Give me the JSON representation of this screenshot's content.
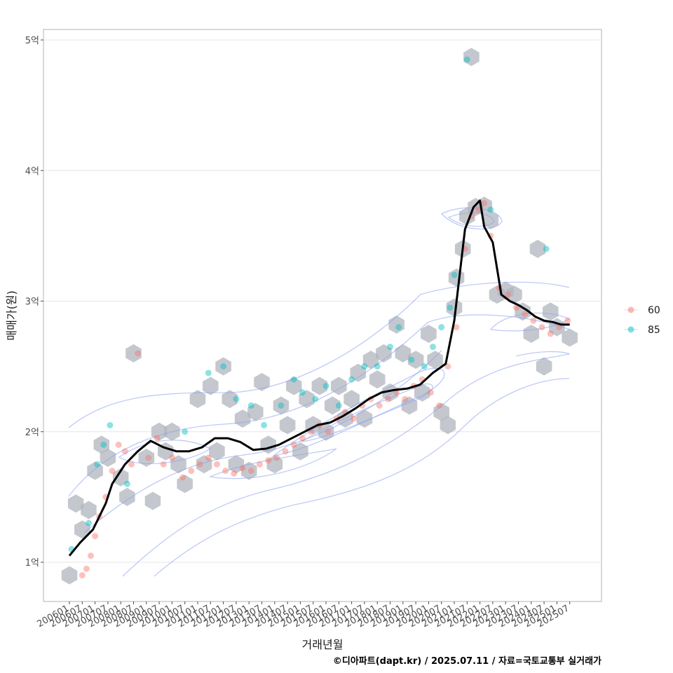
{
  "chart_data": {
    "type": "scatter",
    "xlabel": "거래년월",
    "ylabel": "매매가(원)",
    "caption": "©디아파트(dapt.kr) / 2025.07.11 / 자료=국토교통부 실거래가",
    "x_ticks": [
      "200601",
      "200607",
      "200701",
      "200707",
      "200801",
      "200807",
      "200901",
      "200907",
      "201001",
      "201007",
      "201101",
      "201107",
      "201201",
      "201207",
      "201301",
      "201307",
      "201401",
      "201407",
      "201501",
      "201507",
      "201601",
      "201607",
      "201701",
      "201707",
      "201801",
      "201807",
      "201901",
      "201907",
      "202001",
      "202007",
      "202101",
      "202107",
      "202201",
      "202207",
      "202301",
      "202307",
      "202401",
      "202407",
      "202501",
      "202507"
    ],
    "y_ticks": [
      {
        "value": 1,
        "label": "1억"
      },
      {
        "value": 2,
        "label": "2억"
      },
      {
        "value": 3,
        "label": "3억"
      },
      {
        "value": 4,
        "label": "4억"
      },
      {
        "value": 5,
        "label": "5억"
      }
    ],
    "ylim": [
      0.7,
      5.08
    ],
    "grid": true,
    "legend_position": "right",
    "series": [
      {
        "name": "60",
        "color": "#F8766D",
        "points": [
          [
            "2006-07",
            0.9
          ],
          [
            "2006-09",
            0.95
          ],
          [
            "2006-11",
            1.05
          ],
          [
            "2007-01",
            1.2
          ],
          [
            "2007-03",
            1.35
          ],
          [
            "2007-06",
            1.5
          ],
          [
            "2007-09",
            1.7
          ],
          [
            "2007-12",
            1.9
          ],
          [
            "2008-03",
            1.85
          ],
          [
            "2008-06",
            1.75
          ],
          [
            "2008-09",
            2.6
          ],
          [
            "2009-02",
            1.8
          ],
          [
            "2009-06",
            1.95
          ],
          [
            "2009-09",
            1.75
          ],
          [
            "2010-01",
            1.8
          ],
          [
            "2010-06",
            1.65
          ],
          [
            "2010-10",
            1.7
          ],
          [
            "2011-02",
            1.75
          ],
          [
            "2011-06",
            1.8
          ],
          [
            "2011-10",
            1.75
          ],
          [
            "2012-02",
            1.7
          ],
          [
            "2012-06",
            1.68
          ],
          [
            "2012-10",
            1.72
          ],
          [
            "2013-02",
            1.7
          ],
          [
            "2013-06",
            1.75
          ],
          [
            "2013-10",
            1.78
          ],
          [
            "2014-02",
            1.8
          ],
          [
            "2014-06",
            1.85
          ],
          [
            "2014-10",
            1.9
          ],
          [
            "2015-02",
            1.95
          ],
          [
            "2015-06",
            2.0
          ],
          [
            "2015-10",
            2.05
          ],
          [
            "2016-02",
            2.0
          ],
          [
            "2016-06",
            2.1
          ],
          [
            "2016-10",
            2.15
          ],
          [
            "2017-02",
            2.1
          ],
          [
            "2017-06",
            2.2
          ],
          [
            "2017-10",
            2.25
          ],
          [
            "2018-02",
            2.2
          ],
          [
            "2018-06",
            2.25
          ],
          [
            "2018-10",
            2.3
          ],
          [
            "2019-02",
            2.25
          ],
          [
            "2019-06",
            2.35
          ],
          [
            "2019-10",
            2.4
          ],
          [
            "2020-02",
            2.3
          ],
          [
            "2020-06",
            2.2
          ],
          [
            "2020-10",
            2.5
          ],
          [
            "2021-02",
            2.8
          ],
          [
            "2021-06",
            3.4
          ],
          [
            "2021-09",
            3.65
          ],
          [
            "2021-12",
            3.7
          ],
          [
            "2022-03",
            3.75
          ],
          [
            "2022-06",
            3.5
          ],
          [
            "2022-10",
            3.1
          ],
          [
            "2023-02",
            3.05
          ],
          [
            "2023-06",
            2.95
          ],
          [
            "2023-10",
            2.9
          ],
          [
            "2024-02",
            2.85
          ],
          [
            "2024-06",
            2.8
          ],
          [
            "2024-10",
            2.75
          ],
          [
            "2025-02",
            2.8
          ],
          [
            "2025-06",
            2.85
          ]
        ]
      },
      {
        "name": "85",
        "color": "#00BFC4",
        "points": [
          [
            "2006-02",
            1.1
          ],
          [
            "2006-10",
            1.3
          ],
          [
            "2007-02",
            1.75
          ],
          [
            "2007-05",
            1.9
          ],
          [
            "2007-08",
            2.05
          ],
          [
            "2008-04",
            1.6
          ],
          [
            "2010-07",
            2.0
          ],
          [
            "2011-06",
            2.45
          ],
          [
            "2012-01",
            2.5
          ],
          [
            "2012-07",
            2.25
          ],
          [
            "2013-02",
            2.2
          ],
          [
            "2013-08",
            2.05
          ],
          [
            "2014-04",
            2.2
          ],
          [
            "2014-10",
            2.4
          ],
          [
            "2015-02",
            2.3
          ],
          [
            "2015-08",
            2.25
          ],
          [
            "2016-01",
            2.35
          ],
          [
            "2016-07",
            2.2
          ],
          [
            "2017-01",
            2.4
          ],
          [
            "2017-07",
            2.5
          ],
          [
            "2018-01",
            2.5
          ],
          [
            "2018-07",
            2.65
          ],
          [
            "2018-11",
            2.8
          ],
          [
            "2019-05",
            2.55
          ],
          [
            "2019-11",
            2.5
          ],
          [
            "2020-03",
            2.65
          ],
          [
            "2020-07",
            2.8
          ],
          [
            "2020-11",
            2.95
          ],
          [
            "2021-01",
            3.2
          ],
          [
            "2021-07",
            4.85
          ],
          [
            "2022-06",
            3.7
          ],
          [
            "2024-08",
            3.4
          ]
        ]
      }
    ],
    "median_line": [
      [
        "2006-01",
        1.05
      ],
      [
        "2006-06",
        1.15
      ],
      [
        "2006-12",
        1.25
      ],
      [
        "2007-06",
        1.45
      ],
      [
        "2007-09",
        1.6
      ],
      [
        "2008-03",
        1.75
      ],
      [
        "2008-09",
        1.85
      ],
      [
        "2009-03",
        1.93
      ],
      [
        "2009-09",
        1.88
      ],
      [
        "2010-03",
        1.85
      ],
      [
        "2010-09",
        1.85
      ],
      [
        "2011-03",
        1.88
      ],
      [
        "2011-09",
        1.95
      ],
      [
        "2012-03",
        1.95
      ],
      [
        "2012-09",
        1.92
      ],
      [
        "2013-03",
        1.86
      ],
      [
        "2013-09",
        1.87
      ],
      [
        "2014-03",
        1.9
      ],
      [
        "2014-09",
        1.95
      ],
      [
        "2015-03",
        2.0
      ],
      [
        "2015-09",
        2.05
      ],
      [
        "2016-03",
        2.07
      ],
      [
        "2016-09",
        2.12
      ],
      [
        "2017-03",
        2.18
      ],
      [
        "2017-09",
        2.25
      ],
      [
        "2018-03",
        2.3
      ],
      [
        "2018-09",
        2.32
      ],
      [
        "2019-03",
        2.33
      ],
      [
        "2019-09",
        2.36
      ],
      [
        "2020-03",
        2.45
      ],
      [
        "2020-09",
        2.52
      ],
      [
        "2021-01",
        2.85
      ],
      [
        "2021-06",
        3.55
      ],
      [
        "2021-10",
        3.72
      ],
      [
        "2022-01",
        3.77
      ],
      [
        "2022-03",
        3.57
      ],
      [
        "2022-07",
        3.45
      ],
      [
        "2022-11",
        3.05
      ],
      [
        "2023-03",
        3.0
      ],
      [
        "2023-07",
        2.97
      ],
      [
        "2023-11",
        2.93
      ],
      [
        "2024-03",
        2.88
      ],
      [
        "2024-07",
        2.85
      ],
      [
        "2024-11",
        2.84
      ],
      [
        "2025-03",
        2.82
      ],
      [
        "2025-07",
        2.82
      ]
    ],
    "hexbins": [
      [
        "2006-01",
        0.9
      ],
      [
        "2006-04",
        1.45
      ],
      [
        "2006-07",
        1.25
      ],
      [
        "2006-10",
        1.4
      ],
      [
        "2007-01",
        1.7
      ],
      [
        "2007-04",
        1.9
      ],
      [
        "2007-07",
        1.8
      ],
      [
        "2008-01",
        1.65
      ],
      [
        "2008-04",
        1.5
      ],
      [
        "2008-07",
        2.6
      ],
      [
        "2009-01",
        1.8
      ],
      [
        "2009-04",
        1.47
      ],
      [
        "2009-07",
        2.0
      ],
      [
        "2009-10",
        1.85
      ],
      [
        "2010-01",
        2.0
      ],
      [
        "2010-04",
        1.75
      ],
      [
        "2010-07",
        1.6
      ],
      [
        "2011-01",
        2.25
      ],
      [
        "2011-04",
        1.75
      ],
      [
        "2011-07",
        2.35
      ],
      [
        "2011-10",
        1.85
      ],
      [
        "2012-01",
        2.5
      ],
      [
        "2012-04",
        2.25
      ],
      [
        "2012-07",
        1.75
      ],
      [
        "2012-10",
        2.1
      ],
      [
        "2013-01",
        1.7
      ],
      [
        "2013-04",
        2.15
      ],
      [
        "2013-07",
        2.38
      ],
      [
        "2013-10",
        1.9
      ],
      [
        "2014-01",
        1.75
      ],
      [
        "2014-04",
        2.2
      ],
      [
        "2014-07",
        2.05
      ],
      [
        "2014-10",
        2.35
      ],
      [
        "2015-01",
        1.85
      ],
      [
        "2015-04",
        2.25
      ],
      [
        "2015-07",
        2.05
      ],
      [
        "2015-10",
        2.35
      ],
      [
        "2016-01",
        2.0
      ],
      [
        "2016-04",
        2.2
      ],
      [
        "2016-07",
        2.35
      ],
      [
        "2016-10",
        2.1
      ],
      [
        "2017-01",
        2.25
      ],
      [
        "2017-04",
        2.45
      ],
      [
        "2017-07",
        2.1
      ],
      [
        "2017-10",
        2.55
      ],
      [
        "2018-01",
        2.4
      ],
      [
        "2018-04",
        2.6
      ],
      [
        "2018-07",
        2.3
      ],
      [
        "2018-10",
        2.82
      ],
      [
        "2019-01",
        2.6
      ],
      [
        "2019-04",
        2.2
      ],
      [
        "2019-07",
        2.55
      ],
      [
        "2019-10",
        2.3
      ],
      [
        "2020-01",
        2.75
      ],
      [
        "2020-04",
        2.55
      ],
      [
        "2020-07",
        2.15
      ],
      [
        "2020-10",
        2.05
      ],
      [
        "2021-01",
        2.95
      ],
      [
        "2021-02",
        3.18
      ],
      [
        "2021-05",
        3.4
      ],
      [
        "2021-07",
        3.65
      ],
      [
        "2021-09",
        4.87
      ],
      [
        "2021-11",
        3.72
      ],
      [
        "2022-03",
        3.73
      ],
      [
        "2022-06",
        3.62
      ],
      [
        "2022-09",
        3.05
      ],
      [
        "2023-01",
        3.08
      ],
      [
        "2023-05",
        3.05
      ],
      [
        "2023-09",
        2.92
      ],
      [
        "2024-01",
        2.75
      ],
      [
        "2024-04",
        3.4
      ],
      [
        "2024-07",
        2.5
      ],
      [
        "2024-10",
        2.92
      ],
      [
        "2025-01",
        2.8
      ],
      [
        "2025-07",
        2.72
      ]
    ]
  }
}
